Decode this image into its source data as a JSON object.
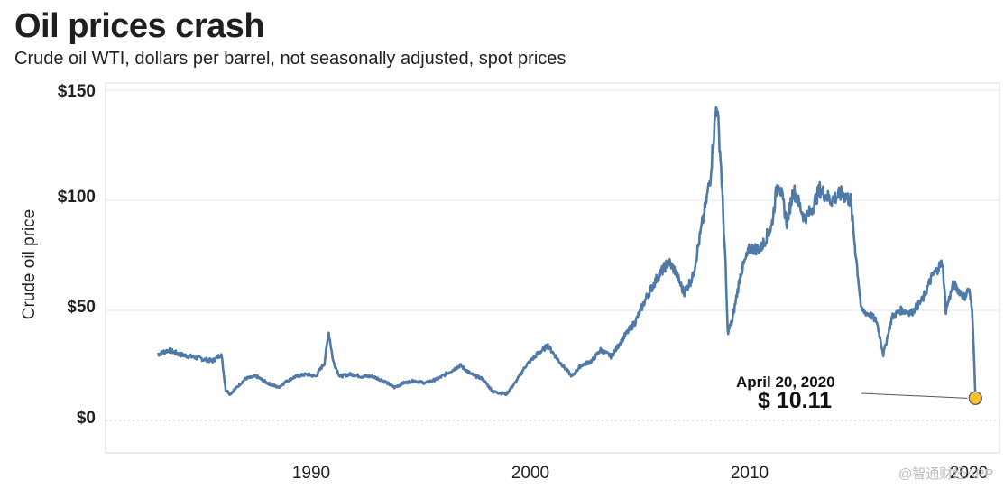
{
  "title": "Oil prices crash",
  "subtitle": "Crude oil WTI, dollars per barrel, not seasonally adjusted, spot prices",
  "watermark": "@智通财经APP",
  "colors": {
    "line": "#4f79a7",
    "marker": "#f2c233",
    "grid": "#e4e4e4"
  },
  "chart_data": {
    "type": "line",
    "title": "Oil prices crash",
    "subtitle": "Crude oil WTI, dollars per barrel, not seasonally adjusted, spot prices",
    "xlabel": "",
    "ylabel": "Crude oil price",
    "xlim": [
      1980.8,
      2021.2
    ],
    "ylim": [
      -15,
      150
    ],
    "x_ticks": [
      {
        "value": 1990,
        "label": "1990"
      },
      {
        "value": 2000,
        "label": "2000"
      },
      {
        "value": 2010,
        "label": "2010"
      },
      {
        "value": 2020,
        "label": "2020"
      }
    ],
    "y_ticks": [
      {
        "value": 150,
        "label": "$150"
      },
      {
        "value": 100,
        "label": "$100"
      },
      {
        "value": 50,
        "label": "$50"
      },
      {
        "value": 0,
        "label": "$0"
      }
    ],
    "series": [
      {
        "name": "Crude oil WTI spot price",
        "x": [
          1983.0,
          1983.5,
          1984.0,
          1984.5,
          1985.0,
          1985.5,
          1985.9,
          1986.1,
          1986.3,
          1986.6,
          1987.0,
          1987.5,
          1988.0,
          1988.5,
          1988.9,
          1989.3,
          1989.8,
          1990.2,
          1990.6,
          1990.8,
          1991.0,
          1991.3,
          1991.8,
          1992.3,
          1992.8,
          1993.3,
          1993.8,
          1994.2,
          1994.7,
          1995.2,
          1995.8,
          1996.3,
          1996.8,
          1997.3,
          1997.8,
          1998.3,
          1998.9,
          1999.3,
          1999.8,
          2000.3,
          2000.8,
          2001.3,
          2001.9,
          2002.3,
          2002.8,
          2003.2,
          2003.7,
          2004.2,
          2004.8,
          2005.3,
          2005.8,
          2006.3,
          2006.6,
          2007.0,
          2007.4,
          2007.8,
          2008.2,
          2008.5,
          2008.7,
          2008.9,
          2009.0,
          2009.2,
          2009.6,
          2010.0,
          2010.5,
          2011.0,
          2011.3,
          2011.7,
          2012.0,
          2012.5,
          2012.8,
          2013.2,
          2013.7,
          2014.2,
          2014.6,
          2014.9,
          2015.1,
          2015.5,
          2015.8,
          2016.1,
          2016.5,
          2016.9,
          2017.4,
          2017.9,
          2018.3,
          2018.8,
          2018.95,
          2019.3,
          2019.8,
          2020.0,
          2020.15,
          2020.25,
          2020.3
        ],
        "values": [
          30,
          32,
          30,
          29,
          28,
          27,
          30,
          14,
          12,
          15,
          19,
          20,
          17,
          15,
          18,
          20,
          21,
          20,
          26,
          40,
          27,
          20,
          21,
          20,
          20,
          18,
          15,
          17,
          18,
          17,
          19,
          22,
          25,
          21,
          19,
          13,
          12,
          17,
          25,
          30,
          34,
          27,
          20,
          25,
          27,
          32,
          29,
          37,
          45,
          56,
          65,
          72,
          68,
          58,
          65,
          87,
          110,
          145,
          115,
          70,
          40,
          45,
          67,
          78,
          78,
          88,
          110,
          90,
          105,
          92,
          95,
          105,
          100,
          103,
          100,
          70,
          50,
          48,
          45,
          30,
          47,
          50,
          49,
          55,
          65,
          72,
          50,
          62,
          56,
          60,
          50,
          25,
          10.11
        ]
      }
    ],
    "annotation": {
      "date": "April 20, 2020",
      "price": "$ 10.11",
      "x": 2020.3,
      "y": 10.11
    }
  }
}
